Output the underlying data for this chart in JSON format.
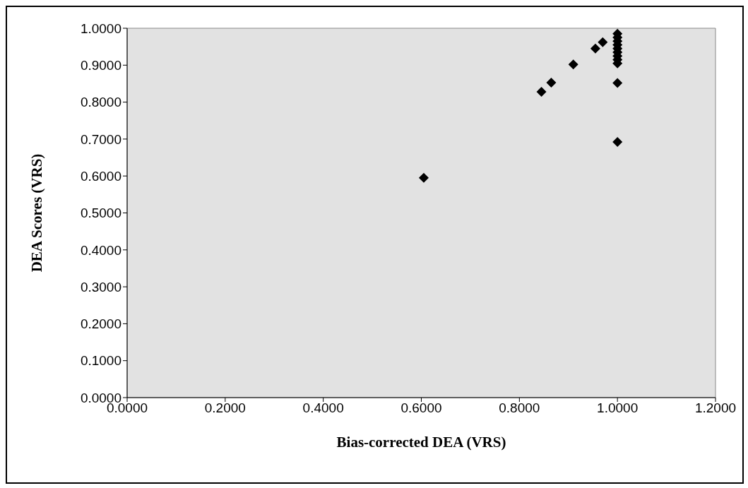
{
  "chart_data": {
    "type": "scatter",
    "xlabel": "Bias-corrected DEA (VRS)",
    "ylabel": "DEA Scores (VRS)",
    "x": [
      0.605,
      0.845,
      0.865,
      0.91,
      0.955,
      0.97,
      1.0,
      1.0,
      1.0,
      1.0,
      1.0,
      1.0,
      1.0,
      1.0,
      1.0,
      1.0,
      1.0
    ],
    "series": [
      {
        "color": "#000000",
        "values": [
          0.595,
          0.828,
          0.853,
          0.902,
          0.945,
          0.962,
          0.985,
          0.975,
          0.965,
          0.955,
          0.945,
          0.935,
          0.925,
          0.915,
          0.905,
          0.852,
          0.692
        ]
      }
    ],
    "xlim": [
      0,
      1.2
    ],
    "xticks": [
      {
        "value": 0,
        "label": "0.0000"
      },
      {
        "value": 0.2,
        "label": "0.2000"
      },
      {
        "value": 0.4,
        "label": "0.4000"
      },
      {
        "value": 0.6,
        "label": "0.6000"
      },
      {
        "value": 0.8,
        "label": "0.8000"
      },
      {
        "value": 1,
        "label": "1.0000"
      },
      {
        "value": 1.2,
        "label": "1.2000"
      }
    ],
    "ylim": [
      0,
      1
    ],
    "yticks": [
      {
        "value": 0,
        "label": "0.0000"
      },
      {
        "value": 0.1,
        "label": "0.1000"
      },
      {
        "value": 0.2,
        "label": "0.2000"
      },
      {
        "value": 0.3,
        "label": "0.3000"
      },
      {
        "value": 0.4,
        "label": "0.4000"
      },
      {
        "value": 0.5,
        "label": "0.5000"
      },
      {
        "value": 0.6,
        "label": "0.6000"
      },
      {
        "value": 0.7,
        "label": "0.7000"
      },
      {
        "value": 0.8,
        "label": "0.8000"
      },
      {
        "value": 0.9,
        "label": "0.9000"
      },
      {
        "value": 1,
        "label": "1.0000"
      }
    ],
    "grid": false,
    "legend": false,
    "marker": "diamond"
  }
}
